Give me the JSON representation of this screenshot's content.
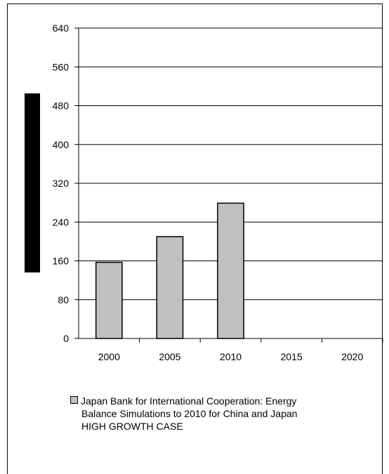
{
  "chart_data": {
    "type": "bar",
    "categories": [
      "2000",
      "2005",
      "2010",
      "2015",
      "2020"
    ],
    "series": [
      {
        "name": "Japan Bank for International Cooperation: Energy Balance Simulations to 2010 for China and Japan HIGH GROWTH CASE",
        "values": [
          157,
          210,
          279,
          null,
          null
        ],
        "color": "#c0c0c0"
      }
    ],
    "ylim": [
      0,
      640
    ],
    "yticks": [
      0,
      80,
      160,
      240,
      320,
      400,
      480,
      560,
      640
    ],
    "grid": true,
    "legend_position": "bottom",
    "title": "",
    "xlabel": "",
    "ylabel": ""
  },
  "legend": {
    "line1": "Japan Bank for International Cooperation: Energy",
    "line2": "Balance Simulations to 2010 for China and Japan",
    "line3": "HIGH GROWTH CASE"
  },
  "colors": {
    "bar_fill": "#c0c0c0",
    "gridline": "#000000",
    "label_block": "#000000"
  }
}
